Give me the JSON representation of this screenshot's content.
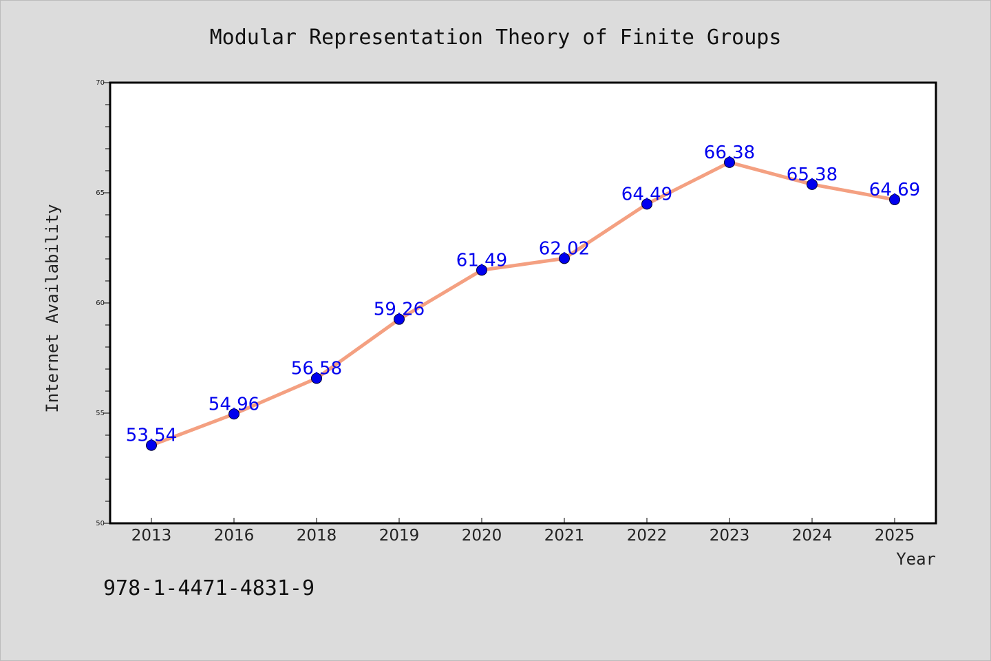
{
  "chart_data": {
    "type": "line",
    "title": "Modular Representation Theory of Finite Groups",
    "xlabel": "Year",
    "ylabel": "Internet Availability",
    "categories": [
      "2013",
      "2016",
      "2018",
      "2019",
      "2020",
      "2021",
      "2022",
      "2023",
      "2024",
      "2025"
    ],
    "series": [
      {
        "values": [
          53.54,
          54.96,
          56.58,
          59.26,
          61.49,
          62.02,
          64.49,
          66.38,
          65.38,
          64.69
        ]
      }
    ],
    "data_labels": [
      "53.54",
      "54.96",
      "56.58",
      "59.26",
      "61.49",
      "62.02",
      "64.49",
      "66.38",
      "65.38",
      "64.69"
    ],
    "ylim": [
      50,
      70
    ],
    "yticks": [
      "50",
      "55",
      "60",
      "65",
      "70"
    ],
    "grid": false,
    "legend": "none",
    "colors": {
      "line": "#f4a081",
      "marker": "#0000ee",
      "label": "#0000ee",
      "background": "#dcdcdc",
      "plot_background": "#ffffff"
    }
  },
  "footer": {
    "isbn": "978-1-4471-4831-9"
  }
}
